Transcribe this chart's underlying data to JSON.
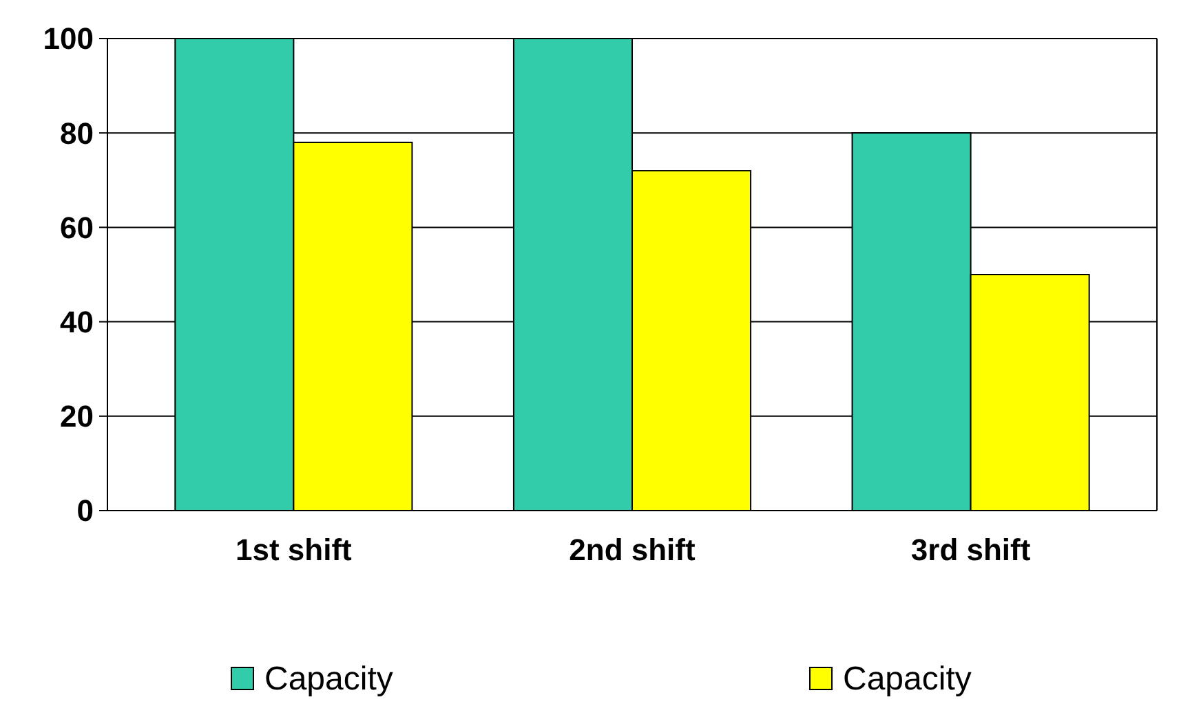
{
  "chart_data": {
    "type": "bar",
    "categories": [
      "1st shift",
      "2nd shift",
      "3rd shift"
    ],
    "series": [
      {
        "name": "Capacity",
        "color": "#33ccaa",
        "values": [
          100,
          100,
          80
        ]
      },
      {
        "name": "Capacity",
        "color": "#ffff00",
        "values": [
          78,
          72,
          50
        ]
      }
    ],
    "ylim": [
      0,
      100
    ],
    "yticks": [
      0,
      20,
      40,
      60,
      80,
      100
    ],
    "grid": "y",
    "legend": "bottom"
  }
}
